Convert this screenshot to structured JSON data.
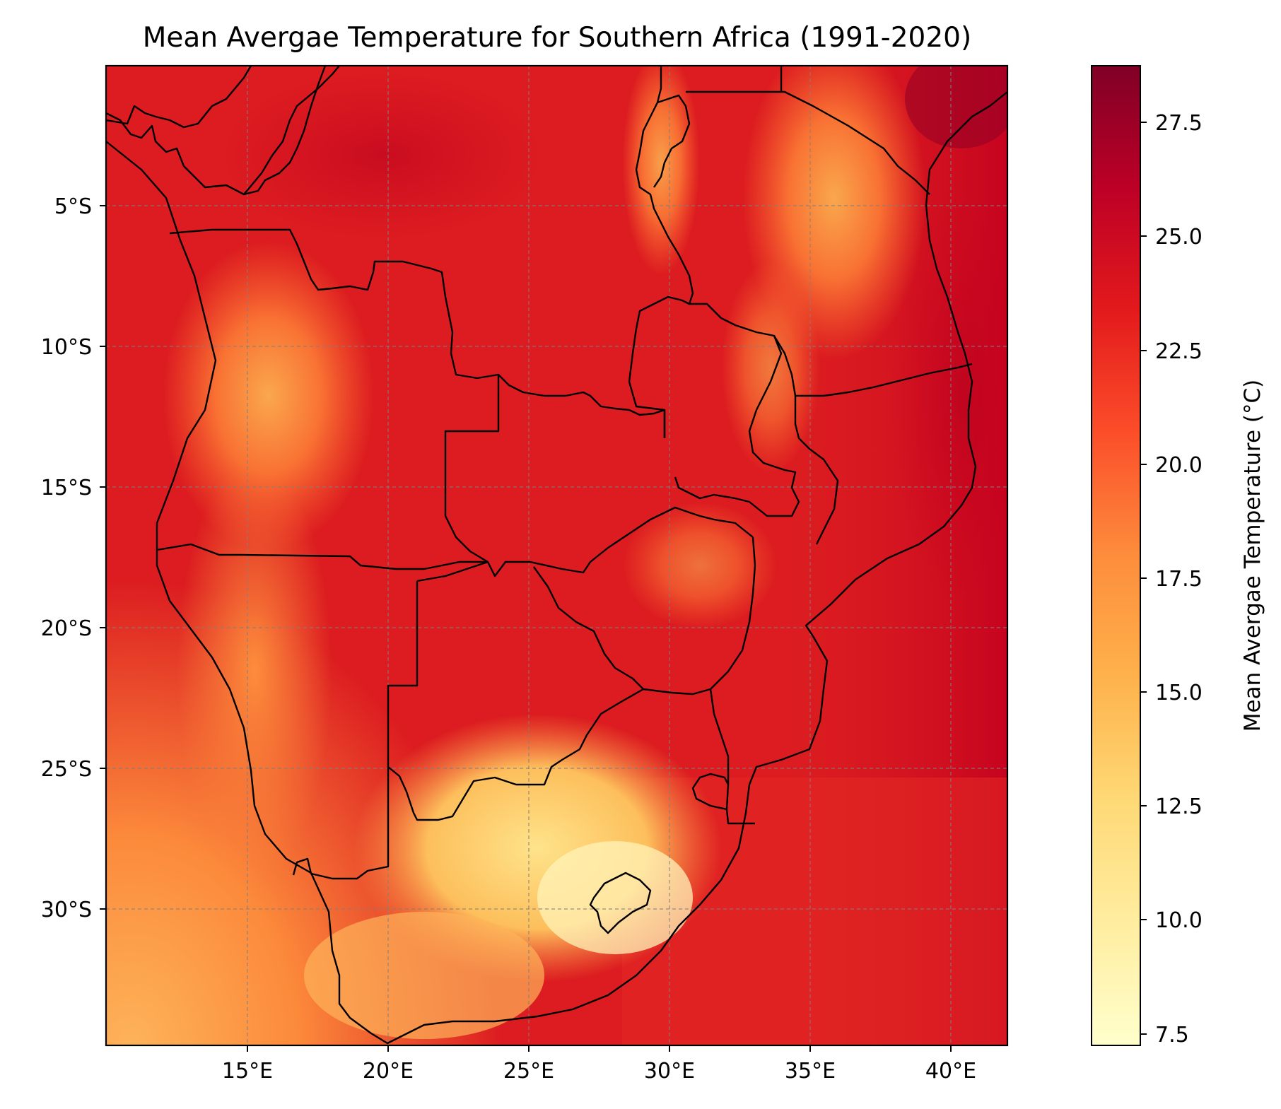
{
  "title": "Mean Avergae Temperature for Southern Africa (1991-2020)",
  "map": {
    "lon_range": [
      10,
      42
    ],
    "lat_range": [
      -35,
      -1
    ],
    "x_ticks": [
      {
        "lon": 15,
        "label": "15°E"
      },
      {
        "lon": 20,
        "label": "20°E"
      },
      {
        "lon": 25,
        "label": "25°E"
      },
      {
        "lon": 30,
        "label": "30°E"
      },
      {
        "lon": 35,
        "label": "35°E"
      },
      {
        "lon": 40,
        "label": "40°E"
      }
    ],
    "y_ticks": [
      {
        "lat": -5,
        "label": "5°S"
      },
      {
        "lat": -10,
        "label": "10°S"
      },
      {
        "lat": -15,
        "label": "15°S"
      },
      {
        "lat": -20,
        "label": "20°S"
      },
      {
        "lat": -25,
        "label": "25°S"
      },
      {
        "lat": -30,
        "label": "30°S"
      }
    ],
    "gridlines": true
  },
  "colorbar": {
    "label": "Mean Avergae Temperature (°C)",
    "colormap": "YlOrRd",
    "range": [
      7.2,
      28.7
    ],
    "ticks": [
      "7.5",
      "10.0",
      "12.5",
      "15.0",
      "17.5",
      "20.0",
      "22.5",
      "25.0",
      "27.5"
    ],
    "colors": [
      "#ffffcc",
      "#ffeda0",
      "#fed976",
      "#feb24c",
      "#fd8d3c",
      "#fc4e2a",
      "#e31a1c",
      "#bd0026",
      "#800026"
    ]
  }
}
